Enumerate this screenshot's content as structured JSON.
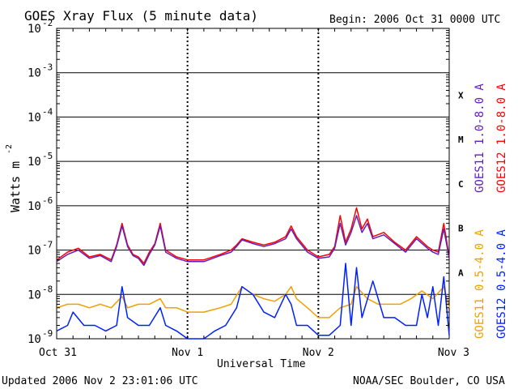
{
  "chart_data": {
    "type": "line",
    "title": "GOES Xray Flux (5 minute data)",
    "begin_label": "Begin:  2006 Oct 31 0000 UTC",
    "xlabel": "Universal Time",
    "ylabel": "Watts m",
    "ylabel_exp": "-2",
    "y_scale": "log",
    "ylim": [
      1e-09,
      0.01
    ],
    "y_ticks": [
      {
        "base": "10",
        "exp": "-2",
        "value": 0.01
      },
      {
        "base": "10",
        "exp": "-3",
        "value": 0.001
      },
      {
        "base": "10",
        "exp": "-4",
        "value": 0.0001
      },
      {
        "base": "10",
        "exp": "-5",
        "value": 1e-05
      },
      {
        "base": "10",
        "exp": "-6",
        "value": 1e-06
      },
      {
        "base": "10",
        "exp": "-7",
        "value": 1e-07
      },
      {
        "base": "10",
        "exp": "-8",
        "value": 1e-08
      },
      {
        "base": "10",
        "exp": "-9",
        "value": 1e-09
      }
    ],
    "xlim": [
      "2006-10-31 00:00",
      "2006-11-03 00:00"
    ],
    "x_ticks": [
      {
        "label": "Oct 31",
        "value": "2006-10-31 00:00"
      },
      {
        "label": "Nov 1",
        "value": "2006-11-01 00:00"
      },
      {
        "label": "Nov 2",
        "value": "2006-11-02 00:00"
      },
      {
        "label": "Nov 3",
        "value": "2006-11-03 00:00"
      }
    ],
    "flare_classes": [
      {
        "label": "X",
        "value": 0.0001
      },
      {
        "label": "M",
        "value": 1e-05
      },
      {
        "label": "C",
        "value": 1e-06
      },
      {
        "label": "B",
        "value": 1e-07
      },
      {
        "label": "A",
        "value": 1e-08
      }
    ],
    "grid": true,
    "legend_position": "right, vertical",
    "x_common": [
      "2006-10-31 00:00",
      "2006-10-31 03:00",
      "2006-10-31 06:00",
      "2006-10-31 09:00",
      "2006-10-31 12:00",
      "2006-10-31 15:00",
      "2006-10-31 18:00",
      "2006-10-31 21:00",
      "2006-11-01 00:00",
      "2006-11-01 03:00",
      "2006-11-01 06:00",
      "2006-11-01 09:00",
      "2006-11-01 12:00",
      "2006-11-01 15:00",
      "2006-11-01 18:00",
      "2006-11-01 21:00",
      "2006-11-02 00:00",
      "2006-11-02 03:00",
      "2006-11-02 06:00",
      "2006-11-02 09:00",
      "2006-11-02 12:00",
      "2006-11-02 15:00",
      "2006-11-02 18:00",
      "2006-11-02 21:00",
      "2006-11-03 00:00"
    ],
    "series": [
      {
        "name": "GOES12 1.0-8.0 A",
        "color": "#ff0000",
        "x": [
          "2006-10-31 00:00",
          "2006-10-31 02:00",
          "2006-10-31 04:00",
          "2006-10-31 06:00",
          "2006-10-31 08:00",
          "2006-10-31 10:00",
          "2006-10-31 11:00",
          "2006-10-31 12:00",
          "2006-10-31 13:00",
          "2006-10-31 14:00",
          "2006-10-31 15:00",
          "2006-10-31 16:00",
          "2006-10-31 17:00",
          "2006-10-31 18:00",
          "2006-10-31 19:00",
          "2006-10-31 20:00",
          "2006-10-31 22:00",
          "2006-11-01 00:00",
          "2006-11-01 03:00",
          "2006-11-01 06:00",
          "2006-11-01 08:00",
          "2006-11-01 09:00",
          "2006-11-01 10:00",
          "2006-11-01 12:00",
          "2006-11-01 14:00",
          "2006-11-01 16:00",
          "2006-11-01 18:00",
          "2006-11-01 19:00",
          "2006-11-01 20:00",
          "2006-11-01 22:00",
          "2006-11-02 00:00",
          "2006-11-02 02:00",
          "2006-11-02 03:00",
          "2006-11-02 04:00",
          "2006-11-02 05:00",
          "2006-11-02 06:00",
          "2006-11-02 07:00",
          "2006-11-02 08:00",
          "2006-11-02 09:00",
          "2006-11-02 10:00",
          "2006-11-02 12:00",
          "2006-11-02 14:00",
          "2006-11-02 16:00",
          "2006-11-02 18:00",
          "2006-11-02 20:00",
          "2006-11-02 21:00",
          "2006-11-02 22:00",
          "2006-11-02 23:00",
          "2006-11-03 00:00"
        ],
        "values": [
          6e-08,
          9e-08,
          1.1e-07,
          7e-08,
          8e-08,
          6e-08,
          1.3e-07,
          4e-07,
          1.3e-07,
          8e-08,
          7e-08,
          5e-08,
          9e-08,
          1.4e-07,
          4e-07,
          1e-07,
          7e-08,
          6e-08,
          6e-08,
          8e-08,
          1e-07,
          1.3e-07,
          1.8e-07,
          1.5e-07,
          1.3e-07,
          1.5e-07,
          2e-07,
          3.5e-07,
          2e-07,
          1e-07,
          7e-08,
          8e-08,
          1.2e-07,
          6e-07,
          1.5e-07,
          3e-07,
          9e-07,
          3e-07,
          5e-07,
          2e-07,
          2.5e-07,
          1.5e-07,
          1e-07,
          2e-07,
          1.2e-07,
          1e-07,
          9e-08,
          4e-07,
          7e-08
        ]
      },
      {
        "name": "GOES11 1.0-8.0 A",
        "color": "#6020c0",
        "x": [
          "2006-10-31 00:00",
          "2006-10-31 02:00",
          "2006-10-31 04:00",
          "2006-10-31 06:00",
          "2006-10-31 08:00",
          "2006-10-31 10:00",
          "2006-10-31 11:00",
          "2006-10-31 12:00",
          "2006-10-31 13:00",
          "2006-10-31 14:00",
          "2006-10-31 15:00",
          "2006-10-31 16:00",
          "2006-10-31 17:00",
          "2006-10-31 18:00",
          "2006-10-31 19:00",
          "2006-10-31 20:00",
          "2006-10-31 22:00",
          "2006-11-01 00:00",
          "2006-11-01 03:00",
          "2006-11-01 06:00",
          "2006-11-01 08:00",
          "2006-11-01 09:00",
          "2006-11-01 10:00",
          "2006-11-01 12:00",
          "2006-11-01 14:00",
          "2006-11-01 16:00",
          "2006-11-01 18:00",
          "2006-11-01 19:00",
          "2006-11-01 20:00",
          "2006-11-01 22:00",
          "2006-11-02 00:00",
          "2006-11-02 02:00",
          "2006-11-02 03:00",
          "2006-11-02 04:00",
          "2006-11-02 05:00",
          "2006-11-02 06:00",
          "2006-11-02 07:00",
          "2006-11-02 08:00",
          "2006-11-02 09:00",
          "2006-11-02 10:00",
          "2006-11-02 12:00",
          "2006-11-02 14:00",
          "2006-11-02 16:00",
          "2006-11-02 18:00",
          "2006-11-02 20:00",
          "2006-11-02 21:00",
          "2006-11-02 22:00",
          "2006-11-02 23:00",
          "2006-11-03 00:00"
        ],
        "values": [
          5.5e-08,
          8e-08,
          1e-07,
          6.5e-08,
          7.5e-08,
          5.5e-08,
          1.2e-07,
          3.5e-07,
          1.2e-07,
          7.5e-08,
          6.5e-08,
          4.5e-08,
          8e-08,
          1.3e-07,
          3.5e-07,
          9e-08,
          6.5e-08,
          5.5e-08,
          5.5e-08,
          7.5e-08,
          9e-08,
          1.2e-07,
          1.7e-07,
          1.4e-07,
          1.2e-07,
          1.4e-07,
          1.8e-07,
          3e-07,
          1.8e-07,
          9e-08,
          6.5e-08,
          7e-08,
          1.1e-07,
          4e-07,
          1.3e-07,
          2.5e-07,
          6e-07,
          2.5e-07,
          4e-07,
          1.8e-07,
          2.2e-07,
          1.4e-07,
          9e-08,
          1.8e-07,
          1.1e-07,
          9e-08,
          8e-08,
          3e-07,
          6.5e-08
        ]
      },
      {
        "name": "GOES11 0.5-4.0 A",
        "color": "#f0a000",
        "x": [
          "2006-10-31 00:00",
          "2006-10-31 02:00",
          "2006-10-31 04:00",
          "2006-10-31 06:00",
          "2006-10-31 08:00",
          "2006-10-31 10:00",
          "2006-10-31 12:00",
          "2006-10-31 13:00",
          "2006-10-31 15:00",
          "2006-10-31 17:00",
          "2006-10-31 19:00",
          "2006-10-31 20:00",
          "2006-10-31 22:00",
          "2006-11-01 00:00",
          "2006-11-01 03:00",
          "2006-11-01 06:00",
          "2006-11-01 08:00",
          "2006-11-01 10:00",
          "2006-11-01 12:00",
          "2006-11-01 14:00",
          "2006-11-01 16:00",
          "2006-11-01 18:00",
          "2006-11-01 19:00",
          "2006-11-01 20:00",
          "2006-11-01 22:00",
          "2006-11-02 00:00",
          "2006-11-02 02:00",
          "2006-11-02 04:00",
          "2006-11-02 06:00",
          "2006-11-02 07:00",
          "2006-11-02 09:00",
          "2006-11-02 11:00",
          "2006-11-02 13:00",
          "2006-11-02 15:00",
          "2006-11-02 17:00",
          "2006-11-02 19:00",
          "2006-11-02 21:00",
          "2006-11-02 23:00",
          "2006-11-03 00:00"
        ],
        "values": [
          5e-09,
          6e-09,
          6e-09,
          5e-09,
          6e-09,
          5e-09,
          9e-09,
          5e-09,
          6e-09,
          6e-09,
          8e-09,
          5e-09,
          5e-09,
          4e-09,
          4e-09,
          5e-09,
          6e-09,
          1.5e-08,
          1e-08,
          8e-09,
          7e-09,
          1e-08,
          1.5e-08,
          8e-09,
          5e-09,
          3e-09,
          3e-09,
          5e-09,
          6e-09,
          1.5e-08,
          8e-09,
          6e-09,
          6e-09,
          6e-09,
          8e-09,
          1.2e-08,
          8e-09,
          1.5e-08,
          5e-09
        ]
      },
      {
        "name": "GOES12 0.5-4.0 A",
        "color": "#0020ff",
        "x": [
          "2006-10-31 00:00",
          "2006-10-31 02:00",
          "2006-10-31 03:00",
          "2006-10-31 05:00",
          "2006-10-31 07:00",
          "2006-10-31 09:00",
          "2006-10-31 11:00",
          "2006-10-31 12:00",
          "2006-10-31 13:00",
          "2006-10-31 15:00",
          "2006-10-31 17:00",
          "2006-10-31 19:00",
          "2006-10-31 20:00",
          "2006-10-31 22:00",
          "2006-11-01 00:00",
          "2006-11-01 03:00",
          "2006-11-01 05:00",
          "2006-11-01 07:00",
          "2006-11-01 09:00",
          "2006-11-01 10:00",
          "2006-11-01 12:00",
          "2006-11-01 14:00",
          "2006-11-01 16:00",
          "2006-11-01 18:00",
          "2006-11-01 19:00",
          "2006-11-01 20:00",
          "2006-11-01 22:00",
          "2006-11-02 00:00",
          "2006-11-02 02:00",
          "2006-11-02 04:00",
          "2006-11-02 05:00",
          "2006-11-02 06:00",
          "2006-11-02 07:00",
          "2006-11-02 08:00",
          "2006-11-02 10:00",
          "2006-11-02 12:00",
          "2006-11-02 14:00",
          "2006-11-02 16:00",
          "2006-11-02 18:00",
          "2006-11-02 19:00",
          "2006-11-02 20:00",
          "2006-11-02 21:00",
          "2006-11-02 22:00",
          "2006-11-02 23:00",
          "2006-11-03 00:00"
        ],
        "values": [
          1.5e-09,
          2e-09,
          4e-09,
          2e-09,
          2e-09,
          1.5e-09,
          2e-09,
          1.5e-08,
          3e-09,
          2e-09,
          2e-09,
          5e-09,
          2e-09,
          1.5e-09,
          1e-09,
          1e-09,
          1.5e-09,
          2e-09,
          5e-09,
          1.5e-08,
          1e-08,
          4e-09,
          3e-09,
          1e-08,
          6e-09,
          2e-09,
          2e-09,
          1.2e-09,
          1.2e-09,
          2e-09,
          5e-08,
          2e-09,
          4e-08,
          3e-09,
          2e-08,
          3e-09,
          3e-09,
          2e-09,
          2e-09,
          1e-08,
          3e-09,
          1.5e-08,
          2e-09,
          2.5e-08,
          1.2e-09
        ]
      }
    ]
  },
  "footer": {
    "updated": "Updated 2006 Nov  2 23:01:06 UTC",
    "credit": "NOAA/SEC Boulder, CO USA"
  }
}
